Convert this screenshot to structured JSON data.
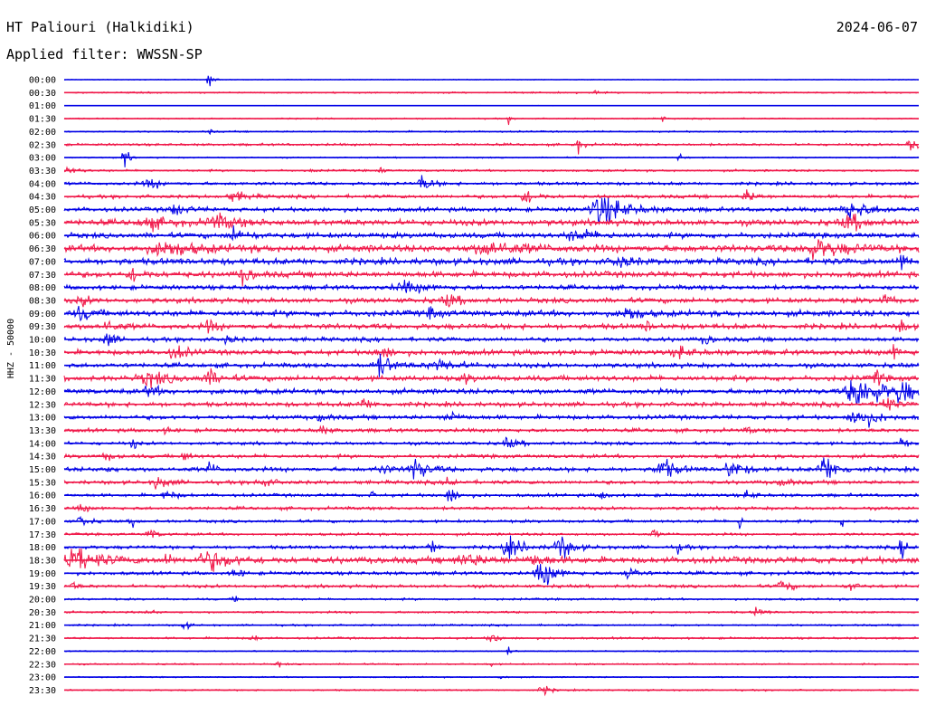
{
  "header": {
    "station": "HT Paliouri (Halkidiki)",
    "date": "2024-06-07",
    "filter": "Applied filter: WWSSN-SP"
  },
  "chart_data": {
    "type": "line",
    "title": "HT Paliouri (Halkidiki)",
    "subtitle": "Applied filter: WWSSN-SP",
    "ylabel": "HHZ - 50000",
    "colors": [
      "#0000e6",
      "#f0194a"
    ],
    "row_labels": [
      "00:00",
      "00:30",
      "01:00",
      "01:30",
      "02:00",
      "02:30",
      "03:00",
      "03:30",
      "04:00",
      "04:30",
      "05:00",
      "05:30",
      "06:00",
      "06:30",
      "07:00",
      "07:30",
      "08:00",
      "08:30",
      "09:00",
      "09:30",
      "10:00",
      "10:30",
      "11:00",
      "11:30",
      "12:00",
      "12:30",
      "13:00",
      "13:30",
      "14:00",
      "14:30",
      "15:00",
      "15:30",
      "16:00",
      "16:30",
      "17:00",
      "17:30",
      "18:00",
      "18:30",
      "19:00",
      "19:30",
      "20:00",
      "20:30",
      "21:00",
      "21:30",
      "22:00",
      "22:30",
      "23:00",
      "23:30"
    ],
    "row_noise": [
      0.3,
      0.6,
      0.2,
      0.5,
      0.6,
      0.9,
      0.5,
      0.8,
      1.2,
      1.3,
      1.6,
      2.2,
      2.0,
      2.6,
      2.4,
      2.2,
      1.7,
      1.9,
      2.2,
      2.0,
      1.6,
      1.9,
      1.7,
      2.0,
      1.9,
      1.7,
      1.6,
      1.4,
      1.2,
      1.4,
      1.6,
      1.4,
      1.2,
      1.2,
      1.1,
      1.0,
      1.3,
      2.4,
      1.3,
      1.2,
      0.8,
      0.8,
      0.7,
      0.8,
      0.5,
      0.6,
      0.5,
      0.6
    ],
    "events": [
      [
        [
          0.17,
          7,
          0.004
        ]
      ],
      [
        [
          0.62,
          2,
          0.003
        ]
      ],
      [],
      [
        [
          0.52,
          3,
          0.002
        ],
        [
          0.7,
          3,
          0.002
        ]
      ],
      [
        [
          0.17,
          2,
          0.003
        ]
      ],
      [
        [
          0.6,
          8,
          0.004
        ],
        [
          0.99,
          11,
          0.005
        ]
      ],
      [
        [
          0.07,
          9,
          0.004
        ],
        [
          0.72,
          5,
          0.003
        ]
      ],
      [
        [
          0.0,
          4,
          0.01
        ],
        [
          0.29,
          5,
          0.002
        ],
        [
          0.37,
          6,
          0.002
        ]
      ],
      [
        [
          0.1,
          4,
          0.01
        ],
        [
          0.42,
          7,
          0.008
        ]
      ],
      [
        [
          0.2,
          4,
          0.012
        ],
        [
          0.54,
          6,
          0.01
        ],
        [
          0.8,
          5,
          0.008
        ]
      ],
      [
        [
          0.13,
          5,
          0.01
        ],
        [
          0.63,
          14,
          0.02
        ],
        [
          0.92,
          7,
          0.02
        ]
      ],
      [
        [
          0.1,
          4,
          0.02
        ],
        [
          0.18,
          5,
          0.02
        ],
        [
          0.92,
          6,
          0.015
        ]
      ],
      [
        [
          0.2,
          6,
          0.01
        ],
        [
          0.6,
          4,
          0.02
        ]
      ],
      [
        [
          0.12,
          5,
          0.03
        ],
        [
          0.5,
          5,
          0.03
        ],
        [
          0.88,
          6,
          0.03
        ]
      ],
      [
        [
          0.65,
          5,
          0.01
        ],
        [
          0.98,
          9,
          0.005
        ]
      ],
      [
        [
          0.08,
          5,
          0.01
        ],
        [
          0.21,
          6,
          0.008
        ]
      ],
      [
        [
          0.4,
          4,
          0.02
        ]
      ],
      [
        [
          0.02,
          5,
          0.006
        ],
        [
          0.45,
          5,
          0.01
        ],
        [
          0.96,
          5,
          0.006
        ]
      ],
      [
        [
          0.02,
          5,
          0.01
        ],
        [
          0.43,
          5,
          0.006
        ],
        [
          0.66,
          6,
          0.01
        ]
      ],
      [
        [
          0.05,
          4,
          0.01
        ],
        [
          0.17,
          6,
          0.006
        ],
        [
          0.68,
          6,
          0.004
        ],
        [
          0.98,
          6,
          0.004
        ]
      ],
      [
        [
          0.05,
          7,
          0.006
        ],
        [
          0.19,
          4,
          0.006
        ],
        [
          0.75,
          5,
          0.005
        ]
      ],
      [
        [
          0.13,
          6,
          0.01
        ],
        [
          0.37,
          6,
          0.01
        ],
        [
          0.72,
          5,
          0.01
        ],
        [
          0.97,
          6,
          0.006
        ]
      ],
      [
        [
          0.37,
          9,
          0.012
        ],
        [
          0.44,
          4,
          0.02
        ]
      ],
      [
        [
          0.1,
          5,
          0.02
        ],
        [
          0.17,
          6,
          0.01
        ],
        [
          0.47,
          4,
          0.005
        ],
        [
          0.95,
          7,
          0.005
        ]
      ],
      [
        [
          0.1,
          5,
          0.008
        ],
        [
          0.93,
          16,
          0.02
        ],
        [
          0.98,
          12,
          0.008
        ]
      ],
      [
        [
          0.35,
          4,
          0.01
        ],
        [
          0.96,
          10,
          0.006
        ]
      ],
      [
        [
          0.3,
          5,
          0.005
        ],
        [
          0.45,
          5,
          0.008
        ],
        [
          0.93,
          9,
          0.015
        ]
      ],
      [
        [
          0.12,
          4,
          0.004
        ],
        [
          0.3,
          4,
          0.006
        ],
        [
          0.8,
          3,
          0.004
        ]
      ],
      [
        [
          0.08,
          6,
          0.003
        ],
        [
          0.52,
          4,
          0.01
        ],
        [
          0.98,
          5,
          0.004
        ]
      ],
      [
        [
          0.05,
          4,
          0.006
        ],
        [
          0.14,
          4,
          0.006
        ]
      ],
      [
        [
          0.05,
          4,
          0.004
        ],
        [
          0.17,
          5,
          0.006
        ],
        [
          0.37,
          5,
          0.008
        ],
        [
          0.41,
          9,
          0.012
        ],
        [
          0.7,
          9,
          0.012
        ],
        [
          0.78,
          7,
          0.012
        ],
        [
          0.89,
          12,
          0.012
        ]
      ],
      [
        [
          0.11,
          5,
          0.01
        ],
        [
          0.23,
          5,
          0.008
        ],
        [
          0.45,
          5,
          0.006
        ],
        [
          0.84,
          5,
          0.006
        ]
      ],
      [
        [
          0.12,
          4,
          0.008
        ],
        [
          0.36,
          5,
          0.002
        ],
        [
          0.45,
          7,
          0.008
        ],
        [
          0.63,
          5,
          0.004
        ],
        [
          0.8,
          4,
          0.006
        ]
      ],
      [
        [
          0.02,
          4,
          0.005
        ]
      ],
      [
        [
          0.02,
          5,
          0.006
        ],
        [
          0.08,
          5,
          0.004
        ],
        [
          0.79,
          9,
          0.002
        ],
        [
          0.91,
          5,
          0.002
        ]
      ],
      [
        [
          0.1,
          5,
          0.006
        ],
        [
          0.69,
          4,
          0.004
        ]
      ],
      [
        [
          0.43,
          6,
          0.006
        ],
        [
          0.52,
          9,
          0.012
        ],
        [
          0.58,
          11,
          0.01
        ],
        [
          0.72,
          5,
          0.004
        ],
        [
          0.98,
          9,
          0.005
        ]
      ],
      [
        [
          0.01,
          12,
          0.02
        ],
        [
          0.12,
          6,
          0.004
        ],
        [
          0.17,
          7,
          0.02
        ],
        [
          0.47,
          4,
          0.02
        ],
        [
          0.55,
          4,
          0.012
        ]
      ],
      [
        [
          0.2,
          5,
          0.006
        ],
        [
          0.56,
          11,
          0.012
        ],
        [
          0.66,
          6,
          0.008
        ]
      ],
      [
        [
          0.01,
          4,
          0.004
        ],
        [
          0.84,
          5,
          0.008
        ],
        [
          0.92,
          4,
          0.006
        ]
      ],
      [
        [
          0.2,
          3,
          0.004
        ]
      ],
      [
        [
          0.1,
          3,
          0.004
        ],
        [
          0.81,
          4,
          0.006
        ]
      ],
      [
        [
          0.14,
          5,
          0.004
        ]
      ],
      [
        [
          0.22,
          4,
          0.004
        ],
        [
          0.5,
          5,
          0.006
        ]
      ],
      [
        [
          0.52,
          3,
          0.003
        ]
      ],
      [
        [
          0.25,
          3,
          0.003
        ],
        [
          0.5,
          3,
          0.002
        ]
      ],
      [
        [
          0.51,
          3,
          0.003
        ]
      ],
      [
        [
          0.56,
          5,
          0.006
        ]
      ]
    ]
  }
}
